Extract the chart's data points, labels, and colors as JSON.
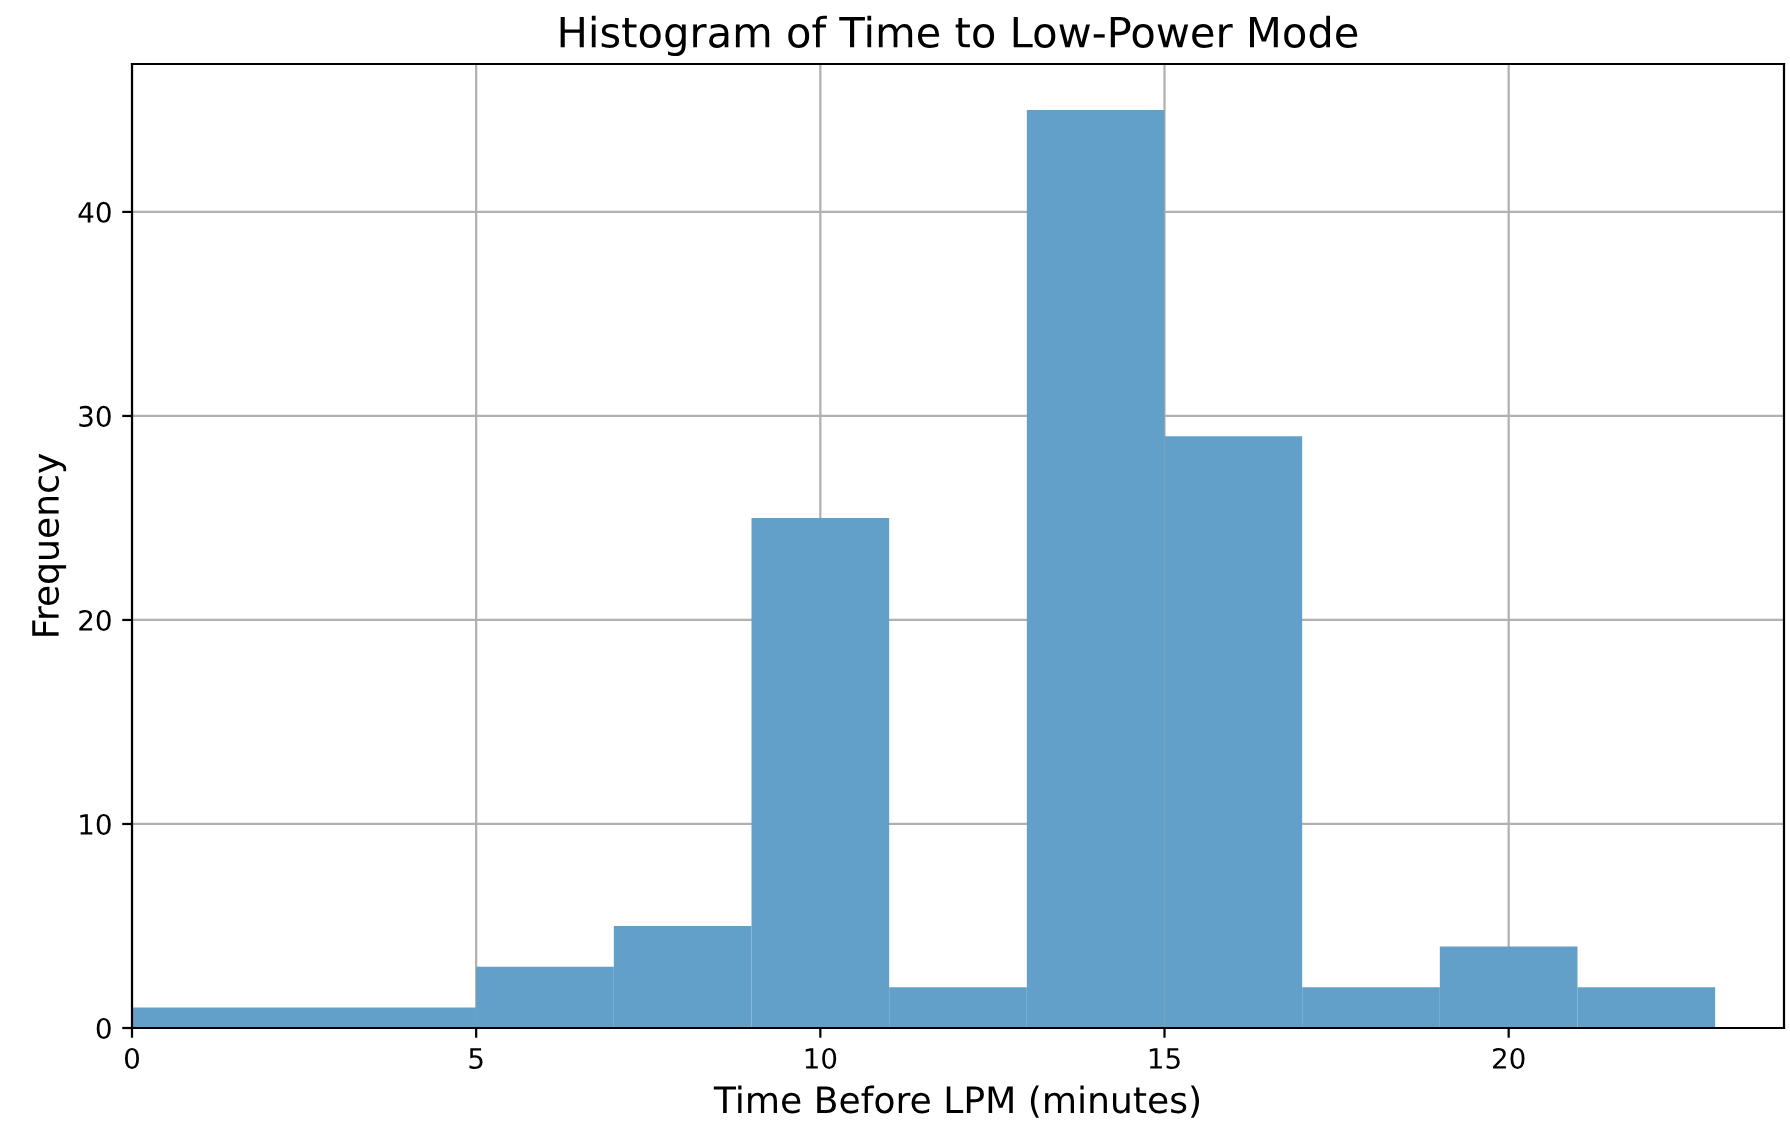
{
  "chart_data": {
    "type": "histogram",
    "title": "Histogram of Time to Low-Power Mode",
    "xlabel": "Time Before LPM (minutes)",
    "ylabel": "Frequency",
    "bins": [
      0,
      5,
      7,
      9,
      11,
      13,
      15,
      17,
      19,
      21,
      23
    ],
    "values": [
      1,
      3,
      5,
      25,
      2,
      45,
      29,
      2,
      4,
      2
    ],
    "color": "#62a0ca",
    "xlim": [
      0,
      24
    ],
    "xticks": [
      0,
      5,
      10,
      15,
      20
    ],
    "ylim": [
      0,
      47.25
    ],
    "yticks": [
      0,
      10,
      20,
      30,
      40
    ],
    "grid": true
  }
}
